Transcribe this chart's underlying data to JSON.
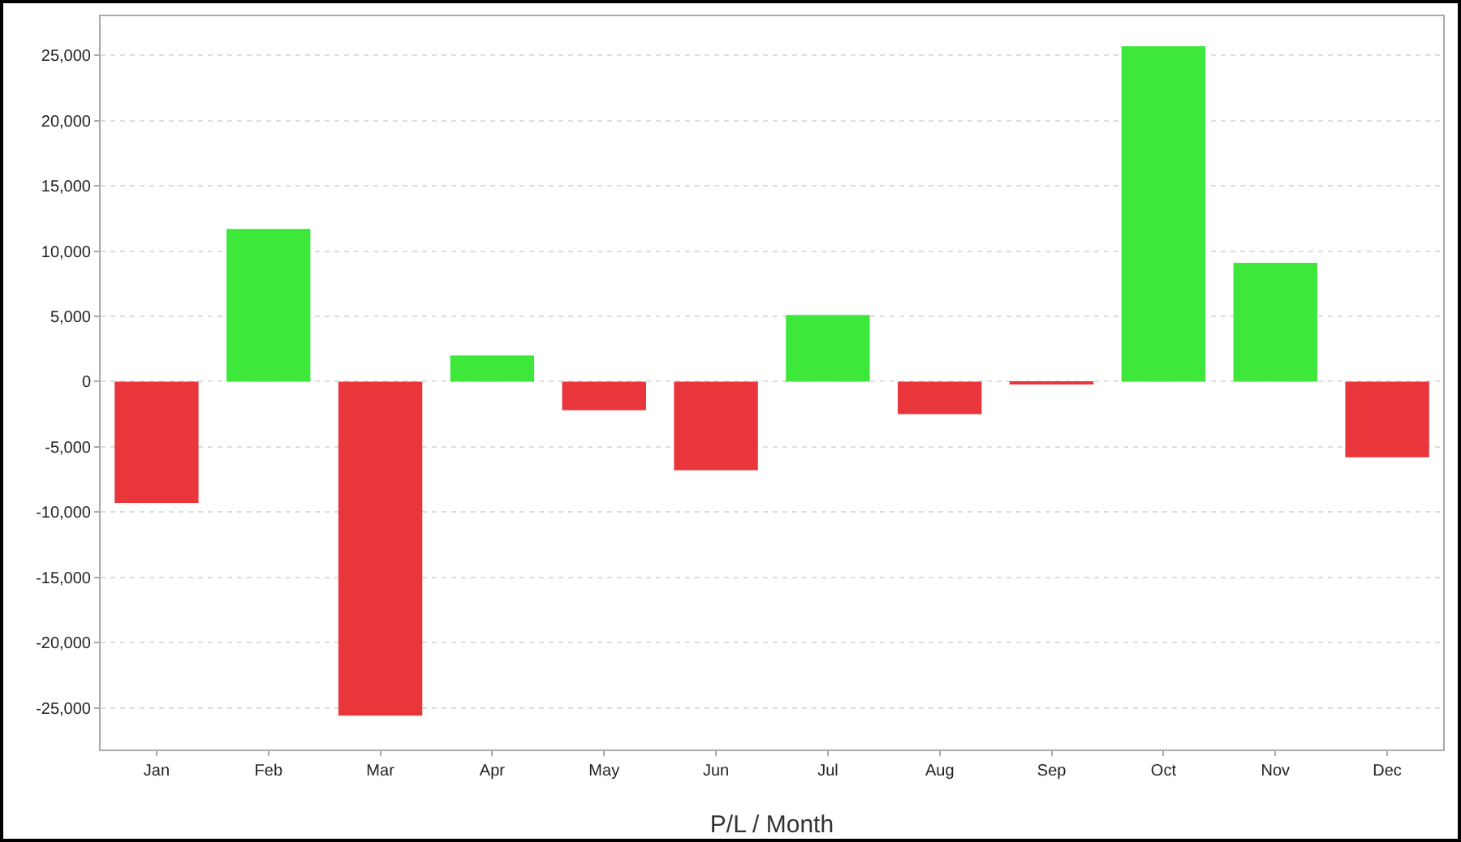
{
  "chart_data": {
    "type": "bar",
    "xlabel": "P/L / Month",
    "categories": [
      "Jan",
      "Feb",
      "Mar",
      "Apr",
      "May",
      "Jun",
      "Jul",
      "Aug",
      "Sep",
      "Oct",
      "Nov",
      "Dec"
    ],
    "values": [
      -9300,
      11700,
      -25600,
      2000,
      -2200,
      -6800,
      5100,
      -2500,
      -200,
      25700,
      9100,
      -5800
    ],
    "colors": [
      "#e8363a",
      "#3de83a",
      "#e8363a",
      "#3de83a",
      "#e8363a",
      "#e8363a",
      "#3de83a",
      "#e8363a",
      "#e8363a",
      "#3de83a",
      "#3de83a",
      "#e8363a"
    ],
    "ylim": [
      -28200,
      28000
    ],
    "yticks": [
      {
        "value": -25000,
        "label": "-25,000"
      },
      {
        "value": -20000,
        "label": "-20,000"
      },
      {
        "value": -15000,
        "label": "-15,000"
      },
      {
        "value": -10000,
        "label": "-10,000"
      },
      {
        "value": -5000,
        "label": "-5,000"
      },
      0,
      {
        "value": 5000,
        "label": "5,000"
      },
      {
        "value": 10000,
        "label": "10,000"
      },
      {
        "value": 15000,
        "label": "15,000"
      },
      {
        "value": 20000,
        "label": "20,000"
      },
      {
        "value": 25000,
        "label": "25,000"
      }
    ],
    "grid": "y"
  }
}
